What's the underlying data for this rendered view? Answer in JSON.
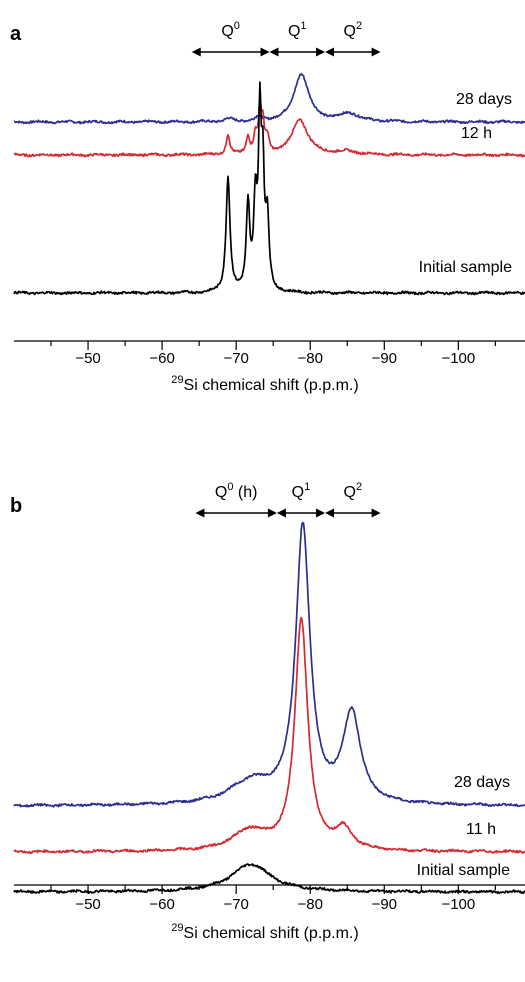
{
  "chart_data": [
    {
      "panel": "a",
      "type": "line",
      "xlabel_sup": "29",
      "xlabel": "Si chemical shift (p.p.m.)",
      "xlim": [
        -40,
        -109
      ],
      "x_reversed": true,
      "xticks": [
        -50,
        -60,
        -70,
        -80,
        -90,
        -100
      ],
      "xtick_labels": [
        "−50",
        "−60",
        "−70",
        "−80",
        "−90",
        "−100"
      ],
      "yaxis": "none (stacked, offset spectra)",
      "regions": [
        {
          "base": "Q",
          "sup": "0",
          "suffix": "",
          "from": -64,
          "to": -74.5
        },
        {
          "base": "Q",
          "sup": "1",
          "suffix": "",
          "from": -74.5,
          "to": -82
        },
        {
          "base": "Q",
          "sup": "2",
          "suffix": "",
          "from": -82,
          "to": -89.5
        }
      ],
      "series": [
        {
          "name": "28 days",
          "color": "#2b2f8f",
          "peaks": [
            {
              "x": -69,
              "height": 3,
              "width": 0.6
            },
            {
              "x": -73,
              "height": 4,
              "width": 0.5
            },
            {
              "x": -78.8,
              "height": 48,
              "width": 1.2
            },
            {
              "x": -85.3,
              "height": 8,
              "width": 1.6
            }
          ]
        },
        {
          "name": "12 h",
          "color": "#d42a32",
          "peaks": [
            {
              "x": -68.9,
              "height": 20,
              "width": 0.28
            },
            {
              "x": -71.6,
              "height": 17,
              "width": 0.28
            },
            {
              "x": -72.6,
              "height": 18,
              "width": 0.28
            },
            {
              "x": -73.2,
              "height": 42,
              "width": 0.22
            },
            {
              "x": -73.6,
              "height": 28,
              "width": 0.22
            },
            {
              "x": -74.2,
              "height": 16,
              "width": 0.28
            },
            {
              "x": -78.6,
              "height": 35,
              "width": 1.3
            },
            {
              "x": -85,
              "height": 3,
              "width": 1.8
            }
          ]
        },
        {
          "name": "Initial sample",
          "color": "#000000",
          "peaks": [
            {
              "x": -68.9,
              "height": 115,
              "width": 0.32
            },
            {
              "x": -71.6,
              "height": 85,
              "width": 0.28
            },
            {
              "x": -72.6,
              "height": 87,
              "width": 0.28
            },
            {
              "x": -73.2,
              "height": 162,
              "width": 0.22
            },
            {
              "x": -73.6,
              "height": 108,
              "width": 0.22
            },
            {
              "x": -74.2,
              "height": 72,
              "width": 0.28
            }
          ]
        }
      ]
    },
    {
      "panel": "b",
      "type": "line",
      "xlabel_sup": "29",
      "xlabel": "Si chemical shift (p.p.m.)",
      "xlim": [
        -40,
        -109
      ],
      "x_reversed": true,
      "xticks": [
        -50,
        -60,
        -70,
        -80,
        -90,
        -100
      ],
      "xtick_labels": [
        "−50",
        "−60",
        "−70",
        "−80",
        "−90",
        "−100"
      ],
      "yaxis": "none (stacked, offset spectra)",
      "regions": [
        {
          "base": "Q",
          "sup": "0",
          "suffix": " (h)",
          "from": -64.5,
          "to": -75.5
        },
        {
          "base": "Q",
          "sup": "1",
          "suffix": "",
          "from": -75.5,
          "to": -82
        },
        {
          "base": "Q",
          "sup": "2",
          "suffix": "",
          "from": -82,
          "to": -89.5
        }
      ],
      "series": [
        {
          "name": "28 days",
          "color": "#2b2f8f",
          "peaks": [
            {
              "x": -72,
              "height": 22,
              "width": 3.5
            },
            {
              "x": -79,
              "height": 276,
              "width": 1.15
            },
            {
              "x": -85.6,
              "height": 90,
              "width": 1.4
            }
          ]
        },
        {
          "name": "11 h",
          "color": "#d42a32",
          "peaks": [
            {
              "x": -71.8,
              "height": 20,
              "width": 2.8
            },
            {
              "x": -78.8,
              "height": 230,
              "width": 1.05
            },
            {
              "x": -84.5,
              "height": 20,
              "width": 1.4
            }
          ]
        },
        {
          "name": "Initial sample",
          "color": "#000000",
          "peaks": [
            {
              "x": -72,
              "height": 28,
              "width": 3.2
            }
          ]
        }
      ]
    }
  ]
}
